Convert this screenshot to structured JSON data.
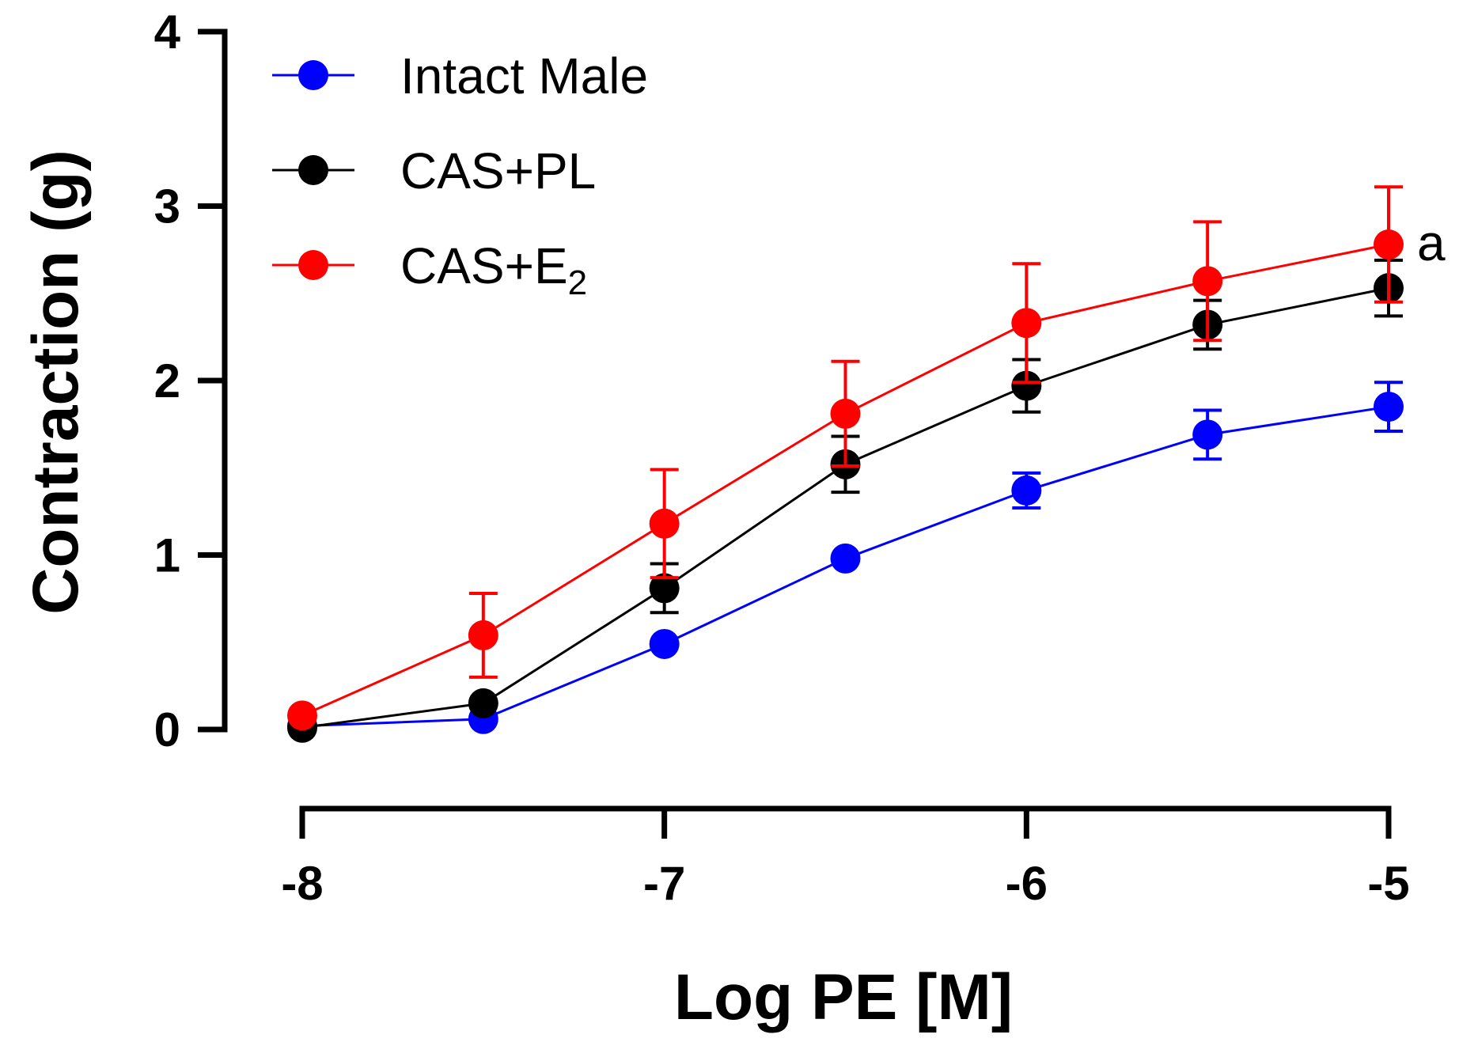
{
  "chart_data": {
    "type": "line",
    "title": "",
    "xlabel": "Log PE [M]",
    "ylabel": "Contraction (g)",
    "xlim": [
      -8,
      -5
    ],
    "ylim": [
      0,
      4
    ],
    "xticks": [
      -8,
      -7,
      -6,
      -5
    ],
    "yticks": [
      0,
      1,
      2,
      3,
      4
    ],
    "grid": false,
    "legend_position": "top-left",
    "x": [
      -8,
      -7.5,
      -7,
      -6.5,
      -6,
      -5.5,
      -5
    ],
    "series": [
      {
        "name": "Intact Male",
        "name_main": "Intact Male",
        "name_sub": "",
        "color": "#0000ff",
        "values": [
          0.02,
          0.06,
          0.49,
          0.98,
          1.37,
          1.69,
          1.85
        ],
        "errors": [
          0.0,
          0.0,
          0.0,
          0.0,
          0.1,
          0.14,
          0.14
        ]
      },
      {
        "name": "CAS+PL",
        "name_main": "CAS+PL",
        "name_sub": "",
        "color": "#000000",
        "values": [
          0.01,
          0.15,
          0.81,
          1.52,
          1.97,
          2.32,
          2.53
        ],
        "errors": [
          0.0,
          0.0,
          0.14,
          0.16,
          0.15,
          0.14,
          0.16
        ]
      },
      {
        "name": "CAS+E2",
        "name_main": "CAS+E",
        "name_sub": "2",
        "color": "#ff0000",
        "values": [
          0.08,
          0.54,
          1.18,
          1.81,
          2.33,
          2.57,
          2.78
        ],
        "errors": [
          0.0,
          0.24,
          0.31,
          0.3,
          0.34,
          0.34,
          0.33
        ]
      }
    ],
    "annotations": [
      {
        "text": "a",
        "series": "CAS+E2",
        "x": -5
      }
    ]
  }
}
